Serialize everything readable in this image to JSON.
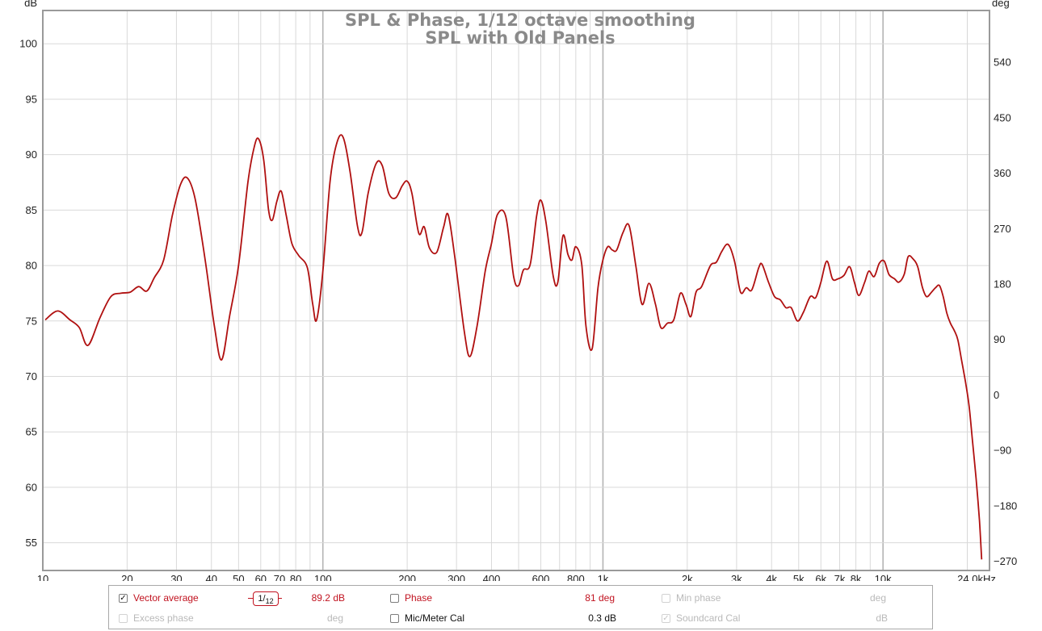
{
  "chart_data": {
    "type": "line",
    "title": "SPL & Phase, 1/12 octave smoothing",
    "subtitle": "SPL with Old Panels",
    "ylabel": "dB",
    "y2label": "deg",
    "xscale": "log",
    "xlim": [
      10,
      24000
    ],
    "ylim": [
      52.5,
      103
    ],
    "y2lim": [
      -285,
      624
    ],
    "grid": true,
    "x_ticks": [
      {
        "value": 10,
        "label": "10"
      },
      {
        "value": 20,
        "label": "20"
      },
      {
        "value": 30,
        "label": "30"
      },
      {
        "value": 40,
        "label": "40"
      },
      {
        "value": 50,
        "label": "50"
      },
      {
        "value": 60,
        "label": "60"
      },
      {
        "value": 70,
        "label": "70"
      },
      {
        "value": 80,
        "label": "80"
      },
      {
        "value": 100,
        "label": "100"
      },
      {
        "value": 200,
        "label": "200"
      },
      {
        "value": 300,
        "label": "300"
      },
      {
        "value": 400,
        "label": "400"
      },
      {
        "value": 600,
        "label": "600"
      },
      {
        "value": 800,
        "label": "800"
      },
      {
        "value": 1000,
        "label": "1k"
      },
      {
        "value": 2000,
        "label": "2k"
      },
      {
        "value": 3000,
        "label": "3k"
      },
      {
        "value": 4000,
        "label": "4k"
      },
      {
        "value": 5000,
        "label": "5k"
      },
      {
        "value": 6000,
        "label": "6k"
      },
      {
        "value": 7000,
        "label": "7k"
      },
      {
        "value": 8000,
        "label": "8k"
      },
      {
        "value": 10000,
        "label": "10k"
      },
      {
        "value": 24000,
        "label": "24.0kHz"
      }
    ],
    "y_ticks": [
      {
        "value": 100,
        "label": "100"
      },
      {
        "value": 95,
        "label": "95"
      },
      {
        "value": 90,
        "label": "90"
      },
      {
        "value": 85,
        "label": "85"
      },
      {
        "value": 80,
        "label": "80"
      },
      {
        "value": 75,
        "label": "75"
      },
      {
        "value": 70,
        "label": "70"
      },
      {
        "value": 65,
        "label": "65"
      },
      {
        "value": 60,
        "label": "60"
      },
      {
        "value": 55,
        "label": "55"
      }
    ],
    "y2_ticks": [
      {
        "value": 540,
        "label": "540"
      },
      {
        "value": 450,
        "label": "450"
      },
      {
        "value": 360,
        "label": "360"
      },
      {
        "value": 270,
        "label": "270"
      },
      {
        "value": 180,
        "label": "180"
      },
      {
        "value": 90,
        "label": "90"
      },
      {
        "value": 0,
        "label": "0"
      },
      {
        "value": -90,
        "label": "−90"
      },
      {
        "value": -180,
        "label": "−180"
      },
      {
        "value": -270,
        "label": "−270"
      }
    ],
    "series": [
      {
        "color": "#b01010",
        "points": [
          [
            10.2,
            75.1
          ],
          [
            11.3,
            75.9
          ],
          [
            12.5,
            75.1
          ],
          [
            13.5,
            74.4
          ],
          [
            14.5,
            72.8
          ],
          [
            16.0,
            75.3
          ],
          [
            17.5,
            77.2
          ],
          [
            19.0,
            77.5
          ],
          [
            20.5,
            77.6
          ],
          [
            22.0,
            78.1
          ],
          [
            23.5,
            77.7
          ],
          [
            25.0,
            78.9
          ],
          [
            27.0,
            80.5
          ],
          [
            29.0,
            84.5
          ],
          [
            31.0,
            87.3
          ],
          [
            32.8,
            87.9
          ],
          [
            35.0,
            86.0
          ],
          [
            38.0,
            80.5
          ],
          [
            41.0,
            74.5
          ],
          [
            43.5,
            71.5
          ],
          [
            46.5,
            75.5
          ],
          [
            50.0,
            80.0
          ],
          [
            54.0,
            87.5
          ],
          [
            57.0,
            90.8
          ],
          [
            59.0,
            91.4
          ],
          [
            61.5,
            89.5
          ],
          [
            64.0,
            85.0
          ],
          [
            66.0,
            84.1
          ],
          [
            68.5,
            85.8
          ],
          [
            71.0,
            86.7
          ],
          [
            74.0,
            84.5
          ],
          [
            77.5,
            82.0
          ],
          [
            82.0,
            80.9
          ],
          [
            88.0,
            79.8
          ],
          [
            92.0,
            76.5
          ],
          [
            95.0,
            75.1
          ],
          [
            100.0,
            79.5
          ],
          [
            106.0,
            87.5
          ],
          [
            112.0,
            91.0
          ],
          [
            118.0,
            91.6
          ],
          [
            125.0,
            88.5
          ],
          [
            133.0,
            83.5
          ],
          [
            138.0,
            83.0
          ],
          [
            145.0,
            86.5
          ],
          [
            155.0,
            89.2
          ],
          [
            163.0,
            89.0
          ],
          [
            172.0,
            86.5
          ],
          [
            182.0,
            86.1
          ],
          [
            192.0,
            87.2
          ],
          [
            200.0,
            87.6
          ],
          [
            208.0,
            86.5
          ],
          [
            220.0,
            82.9
          ],
          [
            230.0,
            83.5
          ],
          [
            240.0,
            81.6
          ],
          [
            255.0,
            81.2
          ],
          [
            270.0,
            83.5
          ],
          [
            280.0,
            84.6
          ],
          [
            295.0,
            81.0
          ],
          [
            320.0,
            74.0
          ],
          [
            335.0,
            71.8
          ],
          [
            355.0,
            74.5
          ],
          [
            380.0,
            79.5
          ],
          [
            400.0,
            82.0
          ],
          [
            420.0,
            84.6
          ],
          [
            450.0,
            84.4
          ],
          [
            480.0,
            79.0
          ],
          [
            500.0,
            78.2
          ],
          [
            520.0,
            79.6
          ],
          [
            550.0,
            80.1
          ],
          [
            580.0,
            84.5
          ],
          [
            600.0,
            85.9
          ],
          [
            625.0,
            84.0
          ],
          [
            665.0,
            79.0
          ],
          [
            690.0,
            78.5
          ],
          [
            720.0,
            82.7
          ],
          [
            750.0,
            81.0
          ],
          [
            775.0,
            80.5
          ],
          [
            800.0,
            81.7
          ],
          [
            840.0,
            80.1
          ],
          [
            870.0,
            74.5
          ],
          [
            915.0,
            72.5
          ],
          [
            960.0,
            78.0
          ],
          [
            1000.0,
            80.5
          ],
          [
            1040.0,
            81.7
          ],
          [
            1080.0,
            81.4
          ],
          [
            1120.0,
            81.4
          ],
          [
            1180.0,
            83.0
          ],
          [
            1240.0,
            83.6
          ],
          [
            1310.0,
            80.0
          ],
          [
            1380.0,
            76.5
          ],
          [
            1460.0,
            78.4
          ],
          [
            1540.0,
            76.5
          ],
          [
            1610.0,
            74.4
          ],
          [
            1700.0,
            74.8
          ],
          [
            1790.0,
            75.1
          ],
          [
            1890.0,
            77.5
          ],
          [
            1980.0,
            76.5
          ],
          [
            2060.0,
            75.4
          ],
          [
            2150.0,
            77.6
          ],
          [
            2250.0,
            78.1
          ],
          [
            2420.0,
            80.0
          ],
          [
            2540.0,
            80.3
          ],
          [
            2660.0,
            81.3
          ],
          [
            2800.0,
            81.9
          ],
          [
            2950.0,
            80.4
          ],
          [
            3100.0,
            77.6
          ],
          [
            3250.0,
            78.0
          ],
          [
            3400.0,
            77.8
          ],
          [
            3600.0,
            79.8
          ],
          [
            3700.0,
            80.1
          ],
          [
            3900.0,
            78.5
          ],
          [
            4100.0,
            77.2
          ],
          [
            4300.0,
            76.9
          ],
          [
            4500.0,
            76.2
          ],
          [
            4700.0,
            76.2
          ],
          [
            4950.0,
            75.0
          ],
          [
            5200.0,
            75.8
          ],
          [
            5500.0,
            77.2
          ],
          [
            5750.0,
            77.1
          ],
          [
            6000.0,
            78.5
          ],
          [
            6300.0,
            80.4
          ],
          [
            6600.0,
            78.8
          ],
          [
            6900.0,
            78.8
          ],
          [
            7250.0,
            79.1
          ],
          [
            7600.0,
            79.9
          ],
          [
            7900.0,
            78.5
          ],
          [
            8200.0,
            77.3
          ],
          [
            8600.0,
            78.5
          ],
          [
            8900.0,
            79.5
          ],
          [
            9300.0,
            79.0
          ],
          [
            9700.0,
            80.2
          ],
          [
            10100.0,
            80.4
          ],
          [
            10500.0,
            79.2
          ],
          [
            11000.0,
            78.8
          ],
          [
            11400.0,
            78.5
          ],
          [
            11900.0,
            79.2
          ],
          [
            12300.0,
            80.8
          ],
          [
            12800.0,
            80.6
          ],
          [
            13300.0,
            79.9
          ],
          [
            13800.0,
            78.1
          ],
          [
            14300.0,
            77.2
          ],
          [
            14900.0,
            77.6
          ],
          [
            15400.0,
            78.0
          ],
          [
            15900.0,
            78.2
          ],
          [
            16400.0,
            77.2
          ],
          [
            16900.0,
            75.7
          ],
          [
            17400.0,
            74.8
          ],
          [
            18000.0,
            74.1
          ],
          [
            18500.0,
            73.3
          ],
          [
            19100.0,
            71.4
          ],
          [
            19700.0,
            69.5
          ],
          [
            20300.0,
            67.3
          ],
          [
            20900.0,
            64.0
          ],
          [
            21500.0,
            60.8
          ],
          [
            22100.0,
            57.0
          ],
          [
            22500.0,
            53.5
          ]
        ]
      }
    ]
  },
  "controls": {
    "vector_average": {
      "label": "Vector average",
      "checked": true,
      "check_glyph": "✓",
      "value": "89.2 dB"
    },
    "smoothing": {
      "numerator": "1",
      "denominator": "12"
    },
    "phase": {
      "label": "Phase",
      "checked": false,
      "value": "81 deg"
    },
    "min_phase": {
      "label": "Min phase",
      "checked": false,
      "value": "deg"
    },
    "excess_phase": {
      "label": "Excess phase",
      "checked": false,
      "value": "deg"
    },
    "mic_meter_cal": {
      "label": "Mic/Meter Cal",
      "checked": false,
      "value": "0.3 dB"
    },
    "soundcard_cal": {
      "label": "Soundcard Cal",
      "checked": true,
      "check_glyph": "✓",
      "value": "dB"
    }
  }
}
